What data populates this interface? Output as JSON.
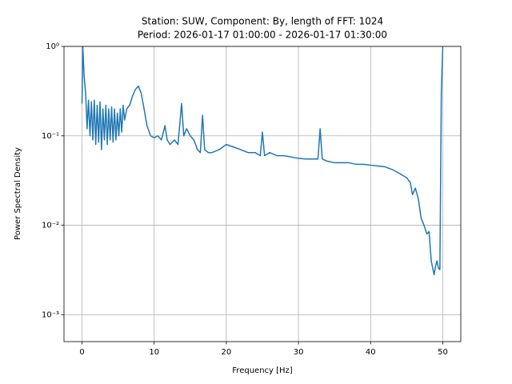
{
  "chart_data": {
    "type": "line",
    "title": "Station: SUW, Component: By, length of FFT: 1024",
    "subtitle": "Period: 2026-01-17 01:00:00 - 2026-01-17 01:30:00",
    "x_label": "Frequency [Hz]",
    "y_label": "Power Spectral Density",
    "xlim": [
      -2.5,
      52.5
    ],
    "xticks": [
      0,
      10,
      20,
      30,
      40,
      50
    ],
    "ylim": [
      0.0005,
      1
    ],
    "log_y": true,
    "grid": true,
    "yticks": [
      {
        "value": 0.001,
        "label": "10⁻³"
      },
      {
        "value": 0.01,
        "label": "10⁻²"
      },
      {
        "value": 0.1,
        "label": "10⁻¹"
      },
      {
        "value": 1,
        "label": "10⁰"
      }
    ],
    "x": [
      0,
      0.1,
      0.3,
      0.5,
      0.7,
      0.9,
      1.1,
      1.3,
      1.5,
      1.7,
      1.9,
      2.1,
      2.3,
      2.5,
      2.7,
      2.9,
      3.1,
      3.3,
      3.5,
      3.7,
      3.9,
      4.1,
      4.3,
      4.5,
      4.7,
      4.9,
      5.1,
      5.3,
      5.5,
      5.7,
      5.9,
      6.2,
      6.6,
      7,
      7.4,
      7.8,
      8.2,
      8.6,
      9,
      9.5,
      10,
      10.5,
      11,
      11.5,
      11.8,
      12.2,
      12.8,
      13.3,
      13.8,
      14.1,
      14.5,
      15,
      15.5,
      16,
      16.4,
      16.7,
      17,
      17.5,
      18,
      19,
      20,
      21,
      22,
      23,
      24,
      24.7,
      25,
      25.3,
      26,
      27,
      28,
      29,
      30,
      31,
      32,
      32.7,
      33,
      33.3,
      34,
      35,
      36,
      37,
      38,
      39,
      40,
      41,
      42,
      43,
      44,
      45,
      45.5,
      45.8,
      46.2,
      46.6,
      47,
      47.4,
      47.8,
      48.1,
      48.4,
      48.8,
      49,
      49.2,
      49.4,
      49.6,
      49.8,
      50
    ],
    "series": [
      {
        "name": "By",
        "color": "#1f77b4",
        "values": [
          0.23,
          1.0,
          0.45,
          0.3,
          0.12,
          0.25,
          0.1,
          0.24,
          0.09,
          0.25,
          0.08,
          0.22,
          0.085,
          0.24,
          0.07,
          0.2,
          0.09,
          0.22,
          0.08,
          0.2,
          0.09,
          0.21,
          0.085,
          0.2,
          0.09,
          0.18,
          0.1,
          0.2,
          0.11,
          0.22,
          0.15,
          0.2,
          0.22,
          0.28,
          0.33,
          0.36,
          0.3,
          0.2,
          0.13,
          0.1,
          0.095,
          0.1,
          0.09,
          0.13,
          0.09,
          0.08,
          0.09,
          0.08,
          0.23,
          0.1,
          0.12,
          0.1,
          0.09,
          0.07,
          0.065,
          0.17,
          0.07,
          0.065,
          0.065,
          0.07,
          0.08,
          0.075,
          0.07,
          0.065,
          0.065,
          0.06,
          0.11,
          0.06,
          0.065,
          0.06,
          0.06,
          0.058,
          0.056,
          0.055,
          0.055,
          0.055,
          0.12,
          0.055,
          0.052,
          0.05,
          0.05,
          0.05,
          0.048,
          0.048,
          0.047,
          0.046,
          0.045,
          0.042,
          0.038,
          0.034,
          0.03,
          0.022,
          0.026,
          0.02,
          0.012,
          0.01,
          0.008,
          0.0085,
          0.004,
          0.0028,
          0.0035,
          0.004,
          0.0033,
          0.0032,
          0.3,
          1.0
        ]
      }
    ]
  }
}
